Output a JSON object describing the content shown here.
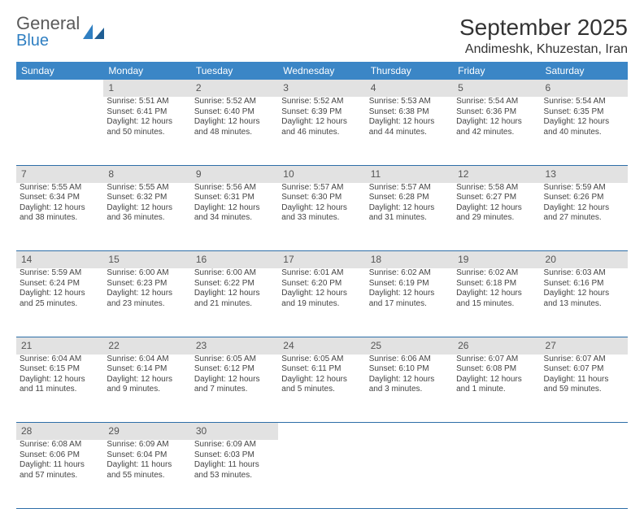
{
  "brand": {
    "line1": "General",
    "line2": "Blue"
  },
  "colors": {
    "header_bg": "#3b86c6",
    "daynum_bg": "#e2e2e2",
    "row_divider": "#2d6ea8",
    "brand_blue": "#2f7fc2",
    "text": "#444444"
  },
  "title": "September 2025",
  "location": "Andimeshk, Khuzestan, Iran",
  "day_headers": [
    "Sunday",
    "Monday",
    "Tuesday",
    "Wednesday",
    "Thursday",
    "Friday",
    "Saturday"
  ],
  "weeks": [
    [
      null,
      {
        "n": "1",
        "sr": "Sunrise: 5:51 AM",
        "ss": "Sunset: 6:41 PM",
        "d1": "Daylight: 12 hours",
        "d2": "and 50 minutes."
      },
      {
        "n": "2",
        "sr": "Sunrise: 5:52 AM",
        "ss": "Sunset: 6:40 PM",
        "d1": "Daylight: 12 hours",
        "d2": "and 48 minutes."
      },
      {
        "n": "3",
        "sr": "Sunrise: 5:52 AM",
        "ss": "Sunset: 6:39 PM",
        "d1": "Daylight: 12 hours",
        "d2": "and 46 minutes."
      },
      {
        "n": "4",
        "sr": "Sunrise: 5:53 AM",
        "ss": "Sunset: 6:38 PM",
        "d1": "Daylight: 12 hours",
        "d2": "and 44 minutes."
      },
      {
        "n": "5",
        "sr": "Sunrise: 5:54 AM",
        "ss": "Sunset: 6:36 PM",
        "d1": "Daylight: 12 hours",
        "d2": "and 42 minutes."
      },
      {
        "n": "6",
        "sr": "Sunrise: 5:54 AM",
        "ss": "Sunset: 6:35 PM",
        "d1": "Daylight: 12 hours",
        "d2": "and 40 minutes."
      }
    ],
    [
      {
        "n": "7",
        "sr": "Sunrise: 5:55 AM",
        "ss": "Sunset: 6:34 PM",
        "d1": "Daylight: 12 hours",
        "d2": "and 38 minutes."
      },
      {
        "n": "8",
        "sr": "Sunrise: 5:55 AM",
        "ss": "Sunset: 6:32 PM",
        "d1": "Daylight: 12 hours",
        "d2": "and 36 minutes."
      },
      {
        "n": "9",
        "sr": "Sunrise: 5:56 AM",
        "ss": "Sunset: 6:31 PM",
        "d1": "Daylight: 12 hours",
        "d2": "and 34 minutes."
      },
      {
        "n": "10",
        "sr": "Sunrise: 5:57 AM",
        "ss": "Sunset: 6:30 PM",
        "d1": "Daylight: 12 hours",
        "d2": "and 33 minutes."
      },
      {
        "n": "11",
        "sr": "Sunrise: 5:57 AM",
        "ss": "Sunset: 6:28 PM",
        "d1": "Daylight: 12 hours",
        "d2": "and 31 minutes."
      },
      {
        "n": "12",
        "sr": "Sunrise: 5:58 AM",
        "ss": "Sunset: 6:27 PM",
        "d1": "Daylight: 12 hours",
        "d2": "and 29 minutes."
      },
      {
        "n": "13",
        "sr": "Sunrise: 5:59 AM",
        "ss": "Sunset: 6:26 PM",
        "d1": "Daylight: 12 hours",
        "d2": "and 27 minutes."
      }
    ],
    [
      {
        "n": "14",
        "sr": "Sunrise: 5:59 AM",
        "ss": "Sunset: 6:24 PM",
        "d1": "Daylight: 12 hours",
        "d2": "and 25 minutes."
      },
      {
        "n": "15",
        "sr": "Sunrise: 6:00 AM",
        "ss": "Sunset: 6:23 PM",
        "d1": "Daylight: 12 hours",
        "d2": "and 23 minutes."
      },
      {
        "n": "16",
        "sr": "Sunrise: 6:00 AM",
        "ss": "Sunset: 6:22 PM",
        "d1": "Daylight: 12 hours",
        "d2": "and 21 minutes."
      },
      {
        "n": "17",
        "sr": "Sunrise: 6:01 AM",
        "ss": "Sunset: 6:20 PM",
        "d1": "Daylight: 12 hours",
        "d2": "and 19 minutes."
      },
      {
        "n": "18",
        "sr": "Sunrise: 6:02 AM",
        "ss": "Sunset: 6:19 PM",
        "d1": "Daylight: 12 hours",
        "d2": "and 17 minutes."
      },
      {
        "n": "19",
        "sr": "Sunrise: 6:02 AM",
        "ss": "Sunset: 6:18 PM",
        "d1": "Daylight: 12 hours",
        "d2": "and 15 minutes."
      },
      {
        "n": "20",
        "sr": "Sunrise: 6:03 AM",
        "ss": "Sunset: 6:16 PM",
        "d1": "Daylight: 12 hours",
        "d2": "and 13 minutes."
      }
    ],
    [
      {
        "n": "21",
        "sr": "Sunrise: 6:04 AM",
        "ss": "Sunset: 6:15 PM",
        "d1": "Daylight: 12 hours",
        "d2": "and 11 minutes."
      },
      {
        "n": "22",
        "sr": "Sunrise: 6:04 AM",
        "ss": "Sunset: 6:14 PM",
        "d1": "Daylight: 12 hours",
        "d2": "and 9 minutes."
      },
      {
        "n": "23",
        "sr": "Sunrise: 6:05 AM",
        "ss": "Sunset: 6:12 PM",
        "d1": "Daylight: 12 hours",
        "d2": "and 7 minutes."
      },
      {
        "n": "24",
        "sr": "Sunrise: 6:05 AM",
        "ss": "Sunset: 6:11 PM",
        "d1": "Daylight: 12 hours",
        "d2": "and 5 minutes."
      },
      {
        "n": "25",
        "sr": "Sunrise: 6:06 AM",
        "ss": "Sunset: 6:10 PM",
        "d1": "Daylight: 12 hours",
        "d2": "and 3 minutes."
      },
      {
        "n": "26",
        "sr": "Sunrise: 6:07 AM",
        "ss": "Sunset: 6:08 PM",
        "d1": "Daylight: 12 hours",
        "d2": "and 1 minute."
      },
      {
        "n": "27",
        "sr": "Sunrise: 6:07 AM",
        "ss": "Sunset: 6:07 PM",
        "d1": "Daylight: 11 hours",
        "d2": "and 59 minutes."
      }
    ],
    [
      {
        "n": "28",
        "sr": "Sunrise: 6:08 AM",
        "ss": "Sunset: 6:06 PM",
        "d1": "Daylight: 11 hours",
        "d2": "and 57 minutes."
      },
      {
        "n": "29",
        "sr": "Sunrise: 6:09 AM",
        "ss": "Sunset: 6:04 PM",
        "d1": "Daylight: 11 hours",
        "d2": "and 55 minutes."
      },
      {
        "n": "30",
        "sr": "Sunrise: 6:09 AM",
        "ss": "Sunset: 6:03 PM",
        "d1": "Daylight: 11 hours",
        "d2": "and 53 minutes."
      },
      null,
      null,
      null,
      null
    ]
  ]
}
